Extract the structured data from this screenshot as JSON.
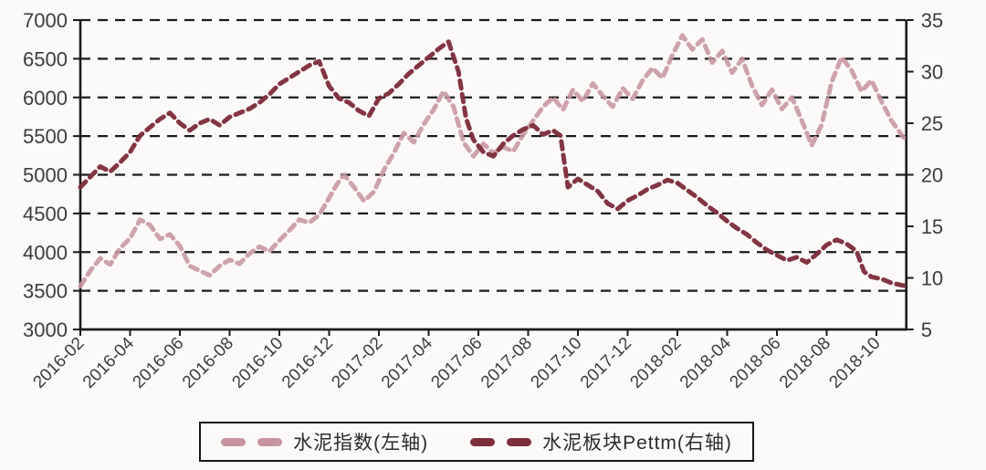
{
  "figure": {
    "background": "#fbfaf9",
    "axis_color": "#1b1b1b",
    "grid_color": "#1b1b1b",
    "tick_label_color": "#3d3d3d"
  },
  "legend": {
    "items": [
      {
        "label": "水泥指数(左轴)",
        "color": "#c795a1"
      },
      {
        "label": "水泥板块Pettm(右轴)",
        "color": "#7e2d3a"
      }
    ]
  },
  "chart_data": {
    "type": "line",
    "title": "",
    "xlabel": "",
    "ylabel_left": "",
    "ylabel_right": "",
    "grid": "horizontal-dashed",
    "legend_position": "bottom",
    "line_style": "dashed",
    "x_unit_note": "x = months since 2016-02",
    "x_tick_step_months": 2,
    "x_tick_labels": [
      "2016-02",
      "2016-04",
      "2016-06",
      "2016-08",
      "2016-10",
      "2016-12",
      "2017-02",
      "2017-04",
      "2017-06",
      "2017-08",
      "2017-10",
      "2017-12",
      "2018-02",
      "2018-04",
      "2018-06",
      "2018-08",
      "2018-10"
    ],
    "left_axis": {
      "min": 3000,
      "max": 7000,
      "ticks": [
        3000,
        3500,
        4000,
        4500,
        5000,
        5500,
        6000,
        6500,
        7000
      ]
    },
    "right_axis": {
      "min": 5,
      "max": 35,
      "ticks": [
        5,
        10,
        15,
        20,
        25,
        30,
        35
      ]
    },
    "x_range": [
      0,
      33.2
    ],
    "series": [
      {
        "name": "水泥指数(左轴)",
        "axis": "left",
        "color": "#c795a1",
        "style": "dashed",
        "points": [
          [
            0,
            3560
          ],
          [
            0.4,
            3760
          ],
          [
            0.8,
            3920
          ],
          [
            1.2,
            3840
          ],
          [
            1.6,
            4050
          ],
          [
            2,
            4180
          ],
          [
            2.4,
            4420
          ],
          [
            2.8,
            4350
          ],
          [
            3.2,
            4170
          ],
          [
            3.6,
            4230
          ],
          [
            4,
            4080
          ],
          [
            4.4,
            3820
          ],
          [
            4.8,
            3760
          ],
          [
            5.2,
            3700
          ],
          [
            5.6,
            3820
          ],
          [
            6,
            3900
          ],
          [
            6.4,
            3850
          ],
          [
            6.8,
            3980
          ],
          [
            7.2,
            4070
          ],
          [
            7.6,
            4010
          ],
          [
            8,
            4150
          ],
          [
            8.4,
            4280
          ],
          [
            8.8,
            4420
          ],
          [
            9.2,
            4380
          ],
          [
            9.6,
            4480
          ],
          [
            10,
            4700
          ],
          [
            10.3,
            4870
          ],
          [
            10.6,
            5000
          ],
          [
            11,
            4840
          ],
          [
            11.4,
            4660
          ],
          [
            11.8,
            4780
          ],
          [
            12.2,
            5060
          ],
          [
            12.6,
            5280
          ],
          [
            13,
            5540
          ],
          [
            13.4,
            5420
          ],
          [
            13.8,
            5650
          ],
          [
            14.2,
            5840
          ],
          [
            14.6,
            6080
          ],
          [
            15,
            5880
          ],
          [
            15.4,
            5420
          ],
          [
            15.8,
            5240
          ],
          [
            16.2,
            5400
          ],
          [
            16.6,
            5280
          ],
          [
            17,
            5360
          ],
          [
            17.4,
            5300
          ],
          [
            17.8,
            5520
          ],
          [
            18.2,
            5700
          ],
          [
            18.6,
            5880
          ],
          [
            19,
            6000
          ],
          [
            19.4,
            5840
          ],
          [
            19.8,
            6100
          ],
          [
            20.2,
            5950
          ],
          [
            20.6,
            6180
          ],
          [
            21,
            6020
          ],
          [
            21.4,
            5880
          ],
          [
            21.8,
            6120
          ],
          [
            22.2,
            5980
          ],
          [
            22.6,
            6220
          ],
          [
            23,
            6380
          ],
          [
            23.4,
            6250
          ],
          [
            23.8,
            6550
          ],
          [
            24.2,
            6800
          ],
          [
            24.6,
            6620
          ],
          [
            25,
            6750
          ],
          [
            25.4,
            6450
          ],
          [
            25.8,
            6600
          ],
          [
            26.2,
            6320
          ],
          [
            26.6,
            6500
          ],
          [
            27,
            6150
          ],
          [
            27.4,
            5900
          ],
          [
            27.8,
            6100
          ],
          [
            28.2,
            5850
          ],
          [
            28.6,
            6000
          ],
          [
            29,
            5700
          ],
          [
            29.4,
            5380
          ],
          [
            29.8,
            5650
          ],
          [
            30.2,
            6200
          ],
          [
            30.6,
            6520
          ],
          [
            31,
            6350
          ],
          [
            31.4,
            6080
          ],
          [
            31.8,
            6220
          ],
          [
            32.2,
            5950
          ],
          [
            32.6,
            5700
          ],
          [
            33,
            5520
          ],
          [
            33.2,
            5440
          ]
        ]
      },
      {
        "name": "水泥板块Pettm(右轴)",
        "axis": "right",
        "color": "#7e2d3a",
        "style": "dashed",
        "points": [
          [
            0,
            18.8
          ],
          [
            0.4,
            19.8
          ],
          [
            0.8,
            20.8
          ],
          [
            1.2,
            20.3
          ],
          [
            1.6,
            21.2
          ],
          [
            2,
            22.2
          ],
          [
            2.4,
            23.8
          ],
          [
            2.8,
            24.6
          ],
          [
            3.2,
            25.4
          ],
          [
            3.6,
            26.0
          ],
          [
            4,
            25.0
          ],
          [
            4.4,
            24.3
          ],
          [
            4.8,
            25.0
          ],
          [
            5.2,
            25.4
          ],
          [
            5.6,
            24.8
          ],
          [
            6,
            25.6
          ],
          [
            6.4,
            26.0
          ],
          [
            6.8,
            26.4
          ],
          [
            7.2,
            27.0
          ],
          [
            7.6,
            27.8
          ],
          [
            8,
            28.8
          ],
          [
            8.4,
            29.4
          ],
          [
            8.8,
            30.0
          ],
          [
            9.2,
            30.6
          ],
          [
            9.6,
            31.0
          ],
          [
            10,
            28.6
          ],
          [
            10.4,
            27.4
          ],
          [
            10.8,
            27.0
          ],
          [
            11.2,
            26.2
          ],
          [
            11.6,
            25.7
          ],
          [
            12,
            27.4
          ],
          [
            12.4,
            27.9
          ],
          [
            12.8,
            28.8
          ],
          [
            13.2,
            29.8
          ],
          [
            13.6,
            30.6
          ],
          [
            14,
            31.4
          ],
          [
            14.4,
            32.2
          ],
          [
            14.8,
            32.9
          ],
          [
            15.2,
            30.0
          ],
          [
            15.5,
            25.5
          ],
          [
            15.8,
            23.4
          ],
          [
            16.2,
            22.2
          ],
          [
            16.6,
            21.8
          ],
          [
            17,
            23.0
          ],
          [
            17.4,
            23.8
          ],
          [
            17.8,
            24.4
          ],
          [
            18.2,
            24.8
          ],
          [
            18.6,
            23.9
          ],
          [
            19,
            24.3
          ],
          [
            19.3,
            23.8
          ],
          [
            19.6,
            18.8
          ],
          [
            20,
            19.6
          ],
          [
            20.4,
            19.0
          ],
          [
            20.8,
            18.4
          ],
          [
            21.2,
            17.2
          ],
          [
            21.6,
            16.7
          ],
          [
            22,
            17.5
          ],
          [
            22.4,
            18.0
          ],
          [
            22.8,
            18.6
          ],
          [
            23.2,
            19.0
          ],
          [
            23.6,
            19.5
          ],
          [
            24,
            19.2
          ],
          [
            24.4,
            18.5
          ],
          [
            24.8,
            17.8
          ],
          [
            25.2,
            17.0
          ],
          [
            25.6,
            16.3
          ],
          [
            26,
            15.5
          ],
          [
            26.4,
            14.8
          ],
          [
            26.8,
            14.2
          ],
          [
            27.2,
            13.4
          ],
          [
            27.6,
            12.7
          ],
          [
            28,
            12.2
          ],
          [
            28.4,
            11.7
          ],
          [
            28.8,
            12.0
          ],
          [
            29.2,
            11.5
          ],
          [
            29.6,
            12.3
          ],
          [
            30,
            13.2
          ],
          [
            30.4,
            13.7
          ],
          [
            30.8,
            13.3
          ],
          [
            31.2,
            12.6
          ],
          [
            31.5,
            10.6
          ],
          [
            31.8,
            10.1
          ],
          [
            32.2,
            9.9
          ],
          [
            32.6,
            9.5
          ],
          [
            33,
            9.3
          ],
          [
            33.2,
            9.2
          ]
        ]
      }
    ]
  }
}
